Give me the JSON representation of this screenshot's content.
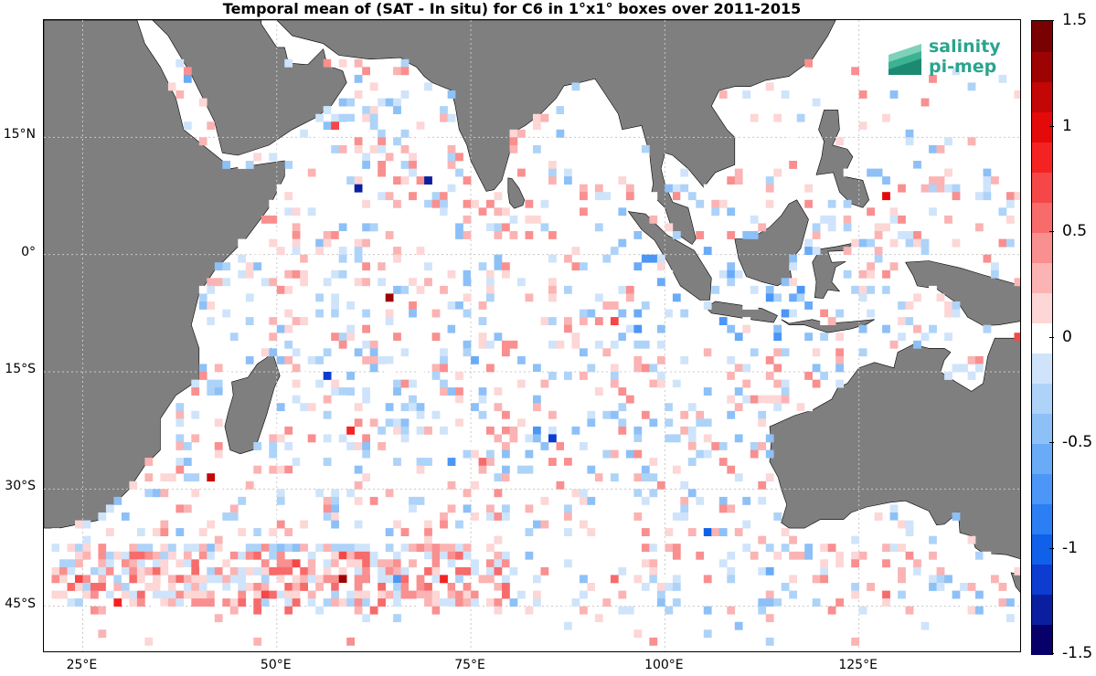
{
  "title": "Temporal mean of (SAT - In situ) for C6 in 1°x1° boxes over 2011-2015",
  "logo": {
    "line1": "salinity",
    "line2": "pi-mep",
    "color": "#2ba48e"
  },
  "map": {
    "land_color": "#7f7f7f",
    "grid_color": "#c8c8c8",
    "lon_range": [
      20,
      146
    ],
    "lat_range": [
      -51,
      30
    ],
    "lat_labels": [
      "15°N",
      "0°",
      "15°S",
      "30°S",
      "45°S"
    ],
    "lat_values": [
      15,
      0,
      -15,
      -30,
      -45
    ],
    "lon_labels": [
      "25°E",
      "50°E",
      "75°E",
      "100°E",
      "125°E"
    ],
    "lon_values": [
      25,
      50,
      75,
      100,
      125
    ]
  },
  "colorbar": {
    "range": [
      -1.5,
      1.5
    ],
    "tick_labels": [
      "1.5",
      "1",
      "0.5",
      "0",
      "-0.5",
      "-1",
      "-1.5"
    ],
    "tick_values": [
      1.5,
      1,
      0.5,
      0,
      -0.5,
      -1,
      -1.5
    ],
    "colors": [
      "#08006a",
      "#0a1fa0",
      "#0c3cd0",
      "#1060ea",
      "#2b7ef4",
      "#4b96f6",
      "#6aabf7",
      "#8dc0f7",
      "#aed3f8",
      "#cfe4fa",
      "#ffffff",
      "#fdd6d6",
      "#fbb3b3",
      "#f98f8f",
      "#f76b6b",
      "#f54747",
      "#f52222",
      "#e50a0a",
      "#c30606",
      "#9e0303",
      "#7a0101"
    ]
  }
}
